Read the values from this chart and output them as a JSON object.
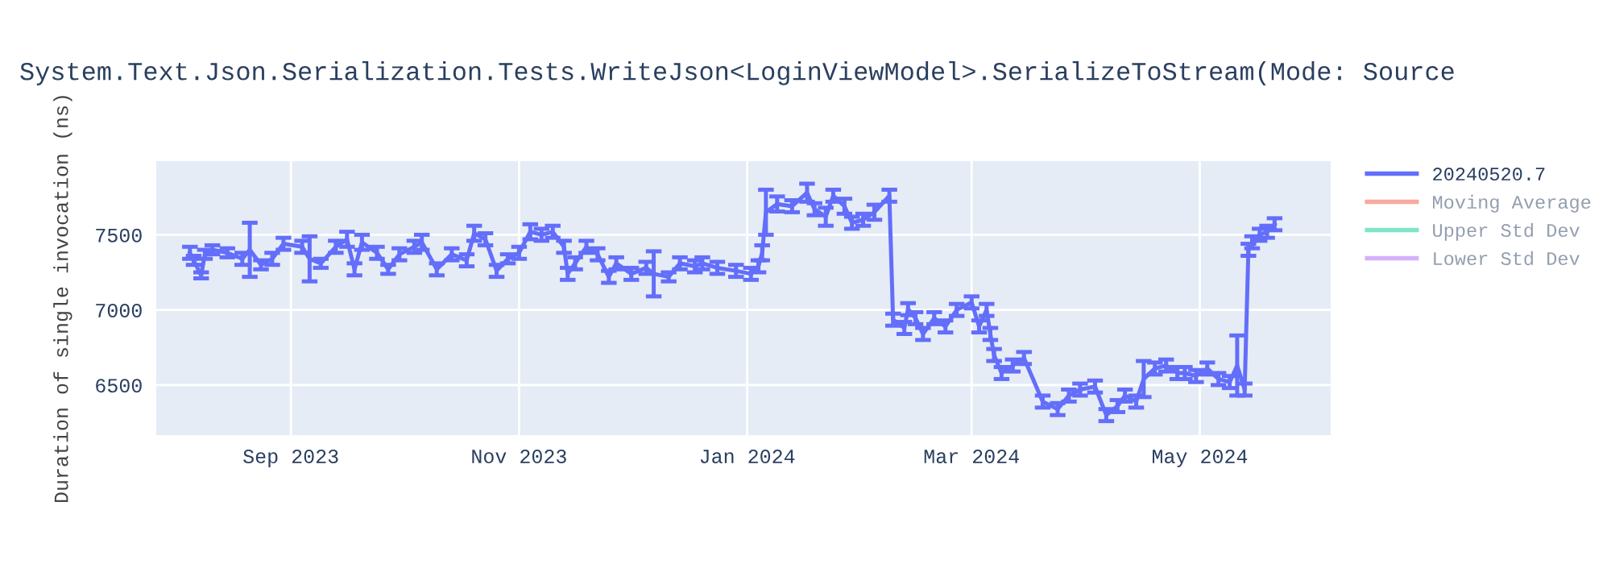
{
  "chart_data": {
    "type": "line",
    "title": "System.Text.Json.Serialization.Tests.WriteJson<LoginViewModel>.SerializeToStream(Mode: Source",
    "ylabel": "Duration of single invocation (ns)",
    "x": [
      "2023-08-05",
      "2023-08-06",
      "2023-08-08",
      "2023-08-09",
      "2023-08-11",
      "2023-08-15",
      "2023-08-19",
      "2023-08-21",
      "2023-08-24",
      "2023-08-27",
      "2023-08-30",
      "2023-09-04",
      "2023-09-06",
      "2023-09-09",
      "2023-09-13",
      "2023-09-16",
      "2023-09-18",
      "2023-09-20",
      "2023-09-24",
      "2023-09-27",
      "2023-09-30",
      "2023-10-04",
      "2023-10-06",
      "2023-10-10",
      "2023-10-14",
      "2023-10-18",
      "2023-10-20",
      "2023-10-23",
      "2023-10-26",
      "2023-10-29",
      "2023-11-01",
      "2023-11-04",
      "2023-11-07",
      "2023-11-10",
      "2023-11-13",
      "2023-11-14",
      "2023-11-16",
      "2023-11-19",
      "2023-11-22",
      "2023-11-25",
      "2023-11-27",
      "2023-12-01",
      "2023-12-05",
      "2023-12-07",
      "2023-12-11",
      "2023-12-14",
      "2023-12-18",
      "2023-12-20",
      "2023-12-24",
      "2023-12-29",
      "2024-01-02",
      "2024-01-04",
      "2024-01-05",
      "2024-01-06",
      "2024-01-09",
      "2024-01-13",
      "2024-01-17",
      "2024-01-19",
      "2024-01-22",
      "2024-01-24",
      "2024-01-27",
      "2024-01-29",
      "2024-02-01",
      "2024-02-04",
      "2024-02-08",
      "2024-02-09",
      "2024-02-12",
      "2024-02-13",
      "2024-02-15",
      "2024-02-17",
      "2024-02-20",
      "2024-02-23",
      "2024-02-26",
      "2024-03-01",
      "2024-03-03",
      "2024-03-05",
      "2024-03-06",
      "2024-03-07",
      "2024-03-09",
      "2024-03-12",
      "2024-03-15",
      "2024-03-20",
      "2024-03-24",
      "2024-03-27",
      "2024-03-30",
      "2024-04-03",
      "2024-04-06",
      "2024-04-09",
      "2024-04-11",
      "2024-04-14",
      "2024-04-16",
      "2024-04-19",
      "2024-04-22",
      "2024-04-25",
      "2024-04-27",
      "2024-04-30",
      "2024-05-03",
      "2024-05-06",
      "2024-05-09",
      "2024-05-11",
      "2024-05-13",
      "2024-05-14",
      "2024-05-15",
      "2024-05-17",
      "2024-05-19",
      "2024-05-21"
    ],
    "series": [
      {
        "name": "20240520.7",
        "color": "#636efa",
        "values": [
          7380,
          7330,
          7230,
          7370,
          7400,
          7380,
          7340,
          7400,
          7300,
          7340,
          7440,
          7420,
          7340,
          7310,
          7420,
          7470,
          7270,
          7450,
          7380,
          7270,
          7370,
          7420,
          7450,
          7270,
          7370,
          7330,
          7510,
          7470,
          7260,
          7340,
          7380,
          7520,
          7500,
          7520,
          7420,
          7240,
          7310,
          7420,
          7370,
          7220,
          7310,
          7240,
          7280,
          7240,
          7220,
          7310,
          7290,
          7310,
          7280,
          7260,
          7240,
          7290,
          7380,
          7650,
          7705,
          7690,
          7780,
          7670,
          7620,
          7760,
          7690,
          7580,
          7600,
          7650,
          7760,
          6935,
          6880,
          7005,
          6945,
          6840,
          6945,
          6890,
          7000,
          7050,
          6890,
          7000,
          6840,
          6700,
          6580,
          6630,
          6680,
          6390,
          6340,
          6430,
          6470,
          6490,
          6300,
          6360,
          6430,
          6390,
          6540,
          6610,
          6630,
          6580,
          6580,
          6560,
          6610,
          6540,
          6520,
          6630,
          6470,
          7400,
          7450,
          7500,
          7520,
          7570
        ],
        "errors": [
          40,
          30,
          20,
          30,
          30,
          30,
          40,
          180,
          30,
          40,
          40,
          40,
          150,
          30,
          40,
          50,
          40,
          50,
          40,
          30,
          40,
          40,
          50,
          40,
          40,
          40,
          50,
          40,
          40,
          30,
          40,
          50,
          40,
          40,
          40,
          40,
          40,
          40,
          40,
          40,
          40,
          40,
          40,
          150,
          30,
          40,
          40,
          40,
          40,
          40,
          40,
          40,
          50,
          150,
          50,
          40,
          60,
          40,
          60,
          40,
          50,
          40,
          40,
          50,
          40,
          40,
          40,
          40,
          40,
          40,
          40,
          40,
          40,
          40,
          40,
          40,
          40,
          40,
          40,
          40,
          40,
          40,
          40,
          40,
          40,
          40,
          40,
          40,
          40,
          40,
          120,
          40,
          40,
          40,
          40,
          40,
          40,
          40,
          40,
          200,
          40,
          40,
          40,
          40,
          40,
          40
        ]
      },
      {
        "name": "Moving Average",
        "color": "#ef553b",
        "values": [
          null,
          null,
          null,
          null,
          null,
          null,
          null,
          null,
          null,
          null,
          null,
          null,
          null,
          null,
          null,
          null,
          null,
          null,
          null,
          null,
          null,
          null,
          null,
          null,
          null,
          null,
          null,
          null,
          null,
          null,
          null,
          null,
          null,
          null,
          null,
          null,
          null,
          null,
          null,
          null,
          null,
          null,
          null,
          null,
          null,
          null,
          null,
          null,
          null,
          null,
          null,
          null,
          null,
          null,
          null,
          null,
          null,
          null,
          null,
          null,
          null,
          null,
          null,
          null,
          null,
          null,
          null,
          null,
          null,
          null,
          null,
          null,
          null,
          null,
          null,
          null,
          null,
          null,
          null,
          null,
          null,
          null,
          null,
          null,
          null,
          null,
          null,
          null,
          null,
          null,
          null,
          null,
          null,
          null,
          null,
          null,
          null,
          null,
          null,
          null,
          null,
          null,
          null,
          null,
          null,
          null
        ]
      },
      {
        "name": "Upper Std Dev",
        "color": "#00cc96",
        "values": [
          null,
          null,
          null,
          null,
          null,
          null,
          null,
          null,
          null,
          null,
          null,
          null,
          null,
          null,
          null,
          null,
          null,
          null,
          null,
          null,
          null,
          null,
          null,
          null,
          null,
          null,
          null,
          null,
          null,
          null,
          null,
          null,
          null,
          null,
          null,
          null,
          null,
          null,
          null,
          null,
          null,
          null,
          null,
          null,
          null,
          null,
          null,
          null,
          null,
          null,
          null,
          null,
          null,
          null,
          null,
          null,
          null,
          null,
          null,
          null,
          null,
          null,
          null,
          null,
          null,
          null,
          null,
          null,
          null,
          null,
          null,
          null,
          null,
          null,
          null,
          null,
          null,
          null,
          null,
          null,
          null,
          null,
          null,
          null,
          null,
          null,
          null,
          null,
          null,
          null,
          null,
          null,
          null,
          null,
          null,
          null,
          null,
          null,
          null,
          null,
          null,
          null,
          null,
          null,
          null,
          null
        ]
      },
      {
        "name": "Lower Std Dev",
        "color": "#ab63fa",
        "values": [
          null,
          null,
          null,
          null,
          null,
          null,
          null,
          null,
          null,
          null,
          null,
          null,
          null,
          null,
          null,
          null,
          null,
          null,
          null,
          null,
          null,
          null,
          null,
          null,
          null,
          null,
          null,
          null,
          null,
          null,
          null,
          null,
          null,
          null,
          null,
          null,
          null,
          null,
          null,
          null,
          null,
          null,
          null,
          null,
          null,
          null,
          null,
          null,
          null,
          null,
          null,
          null,
          null,
          null,
          null,
          null,
          null,
          null,
          null,
          null,
          null,
          null,
          null,
          null,
          null,
          null,
          null,
          null,
          null,
          null,
          null,
          null,
          null,
          null,
          null,
          null,
          null,
          null,
          null,
          null,
          null,
          null,
          null,
          null,
          null,
          null,
          null,
          null,
          null,
          null,
          null,
          null,
          null,
          null,
          null,
          null,
          null,
          null,
          null,
          null,
          null,
          null,
          null,
          null,
          null,
          null
        ]
      }
    ],
    "xlim": [
      "2023-07-27",
      "2024-06-05"
    ],
    "xticks": [
      {
        "value": "2023-09-01",
        "label": "Sep 2023"
      },
      {
        "value": "2023-11-01",
        "label": "Nov 2023"
      },
      {
        "value": "2024-01-01",
        "label": "Jan 2024"
      },
      {
        "value": "2024-03-01",
        "label": "Mar 2024"
      },
      {
        "value": "2024-05-01",
        "label": "May 2024"
      }
    ],
    "ylim": [
      6167,
      7990
    ],
    "yticks": [
      6500,
      7000,
      7500
    ],
    "grid": true,
    "legend": "top right",
    "marker": "none",
    "line_style": "solid"
  }
}
